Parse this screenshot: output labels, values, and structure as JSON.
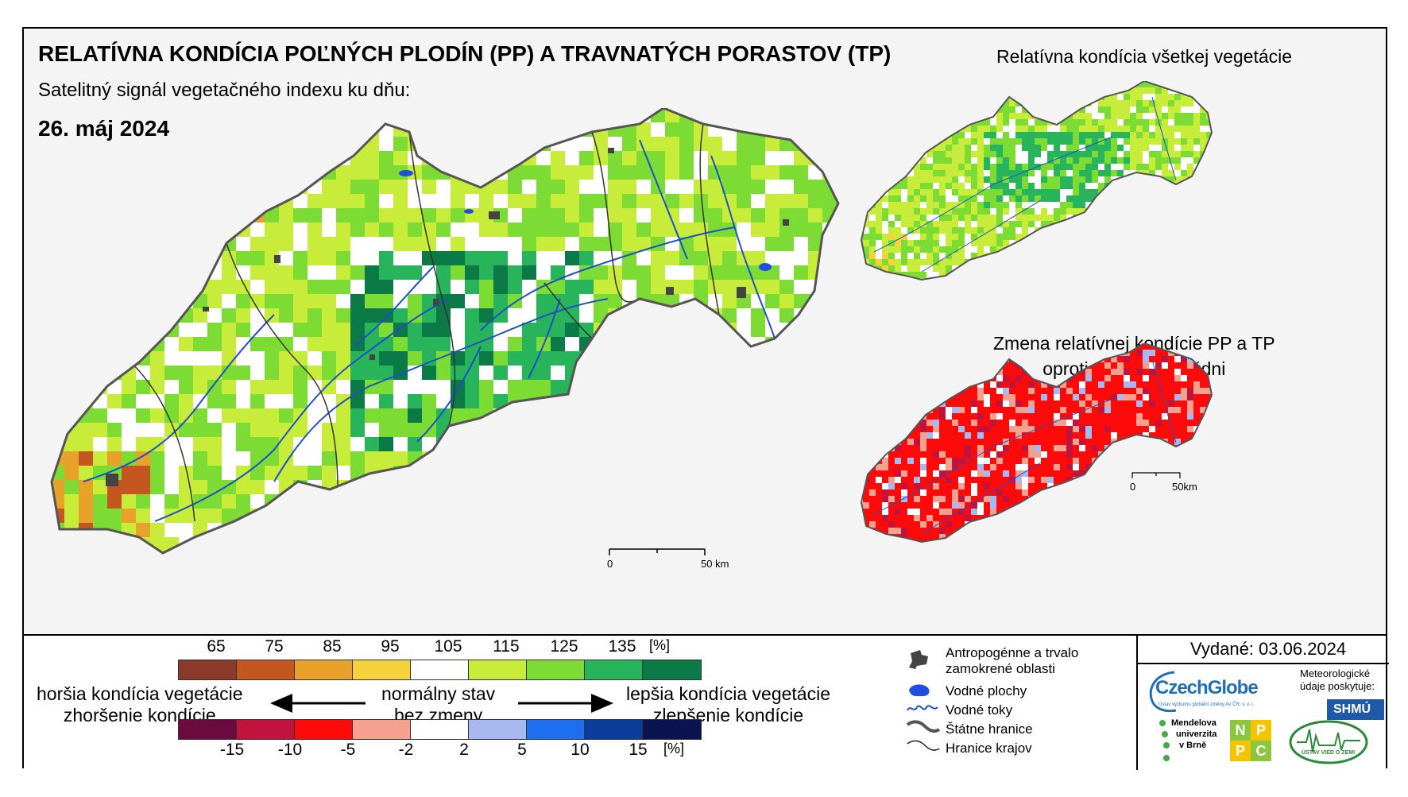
{
  "header": {
    "main_title": "RELATÍVNA KONDÍCIA POĽNÝCH PLODÍN (PP) A TRAVNATÝCH PORASTOV (TP)",
    "subtitle": "Satelitný signál vegetačného indexu ku dňu:",
    "date": "26. máj 2024"
  },
  "insets": {
    "vegetation_title": "Relatívna kondícia všetkej vegetácie",
    "change_title_line1": "Zmena relatívnej kondície PP a TP",
    "change_title_line2": "oproti minulému týždni"
  },
  "scale_bar": {
    "zero": "0",
    "main_label": "50 km",
    "inset_label": "50km"
  },
  "legend": {
    "condition_ticks": [
      "65",
      "75",
      "85",
      "95",
      "105",
      "115",
      "125",
      "135",
      "[%]"
    ],
    "condition_colors": [
      "#8b3a2a",
      "#c4561f",
      "#e8a22a",
      "#f6d23c",
      "#ffffff",
      "#c8ec3a",
      "#7cdc34",
      "#28b45a",
      "#0b7a46"
    ],
    "change_ticks": [
      "-15",
      "-10",
      "-5",
      "-2",
      "2",
      "5",
      "10",
      "15",
      "[%]"
    ],
    "change_colors": [
      "#6b0a3e",
      "#c0143c",
      "#ff0a0a",
      "#f6a090",
      "#ffffff",
      "#a8b8f0",
      "#1e6ef0",
      "#0a3c9c",
      "#0a1450"
    ],
    "worse_line1": "horšia kondícia vegetácie",
    "worse_line2": "zhoršenie kondície",
    "normal_line1": "normálny stav",
    "normal_line2": "bez zmeny",
    "better_line1": "lepšia kondícia vegetácie",
    "better_line2": "zlepšenie kondície"
  },
  "symbols": {
    "urban": "Antropogénne a trvalo zamokrené oblasti",
    "water_bodies": "Vodné plochy",
    "rivers": "Vodné toky",
    "state_border": "Štátne hranice",
    "region_border": "Hranice krajov"
  },
  "credits": {
    "issued": "Vydané: 03.06.2024",
    "czechglobe": "CzechGlobe",
    "czechglobe_sub": "Ústav výzkumu globální změny AV ČR, v. v. i.",
    "meteo": "Meteorologické údaje poskytuje:",
    "shmu": "SHMÚ",
    "mendel_l1": "Mendelova",
    "mendel_l2": "univerzita",
    "mendel_l3": "v Brně",
    "nppc": [
      "N",
      "P",
      "P",
      "C"
    ],
    "uvz": "ÚSTAV VIED O ZEMI"
  },
  "colors": {
    "border": "#555555",
    "river": "#1e50c8",
    "water": "#1e4fe0",
    "urban": "#444444"
  }
}
